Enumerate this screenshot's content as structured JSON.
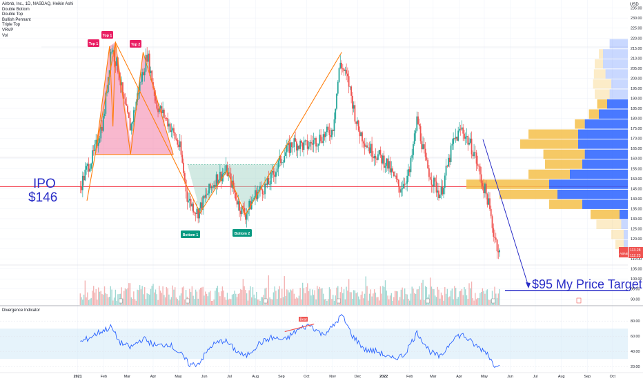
{
  "header": {
    "symbol_line": "Airbnb, Inc., 1D, NASDAQ, Heikin Ashi",
    "indicators": [
      "Double Bottom",
      "Double Top",
      "Bullish Pennant",
      "Triple Top",
      "VRVP",
      "Vol"
    ]
  },
  "price_axis": {
    "ticks": [
      "235.00",
      "230.00",
      "225.00",
      "220.00",
      "215.00",
      "210.00",
      "205.00",
      "200.00",
      "195.00",
      "190.00",
      "185.00",
      "180.00",
      "175.00",
      "170.00",
      "165.00",
      "160.00",
      "155.00",
      "150.00",
      "145.00",
      "140.00",
      "135.00",
      "130.00",
      "125.00",
      "120.00",
      "115.00",
      "110.00",
      "105.00",
      "100.00",
      "95.00",
      "90.00"
    ],
    "currency": "USD"
  },
  "time_axis": {
    "ticks": [
      "2021",
      "Feb",
      "Mar",
      "Apr",
      "May",
      "Jun",
      "Jul",
      "Aug",
      "Sep",
      "Oct",
      "Nov",
      "Dec",
      "2022",
      "Feb",
      "Mar",
      "Apr",
      "May",
      "Jun",
      "Jul",
      "Aug",
      "Sep",
      "Oct"
    ]
  },
  "annotations": {
    "ipo_line1": "IPO",
    "ipo_line2": "$146",
    "target": "$95 My Price Target",
    "top1a": "Top 1",
    "top1b": "Top 1",
    "top2": "Top 2",
    "bottom1": "Bottom 1",
    "bottom2": "Bottom 2",
    "bear": "Bear"
  },
  "price_labels": {
    "symbol": "ABNB",
    "last": "113.28",
    "ha_close": "112.23"
  },
  "oscillator": {
    "title": "Divergence Indicator",
    "ticks": [
      "80.00",
      "60.00",
      "40.00",
      "20.00"
    ]
  },
  "colors": {
    "bull": "#26a69a",
    "bear": "#ef5350",
    "pattern_line": "#ff7f0e",
    "top_fill": "#f06292",
    "bottom_fill": "#a5d6c7",
    "ipo_line": "#f23645",
    "target_line": "#2a2ec7",
    "vp_up": "#2962ff",
    "vp_down": "#f5c04a",
    "osc_line": "#2962ff",
    "osc_band": "#d6ebf9"
  },
  "chart_data": {
    "type": "candlestick",
    "title": "Airbnb, Inc., 1D, NASDAQ, Heikin Ashi",
    "ylim": [
      87,
      239
    ],
    "ipo_price": 146,
    "target_price": 95,
    "close_path": [
      {
        "x": "2021-01-04",
        "y": 146
      },
      {
        "x": "2021-01-12",
        "y": 155
      },
      {
        "x": "2021-01-20",
        "y": 162
      },
      {
        "x": "2021-02-01",
        "y": 180
      },
      {
        "x": "2021-02-10",
        "y": 216
      },
      {
        "x": "2021-02-18",
        "y": 205
      },
      {
        "x": "2021-02-25",
        "y": 188
      },
      {
        "x": "2021-03-05",
        "y": 175
      },
      {
        "x": "2021-03-15",
        "y": 195
      },
      {
        "x": "2021-03-25",
        "y": 212
      },
      {
        "x": "2021-04-05",
        "y": 187
      },
      {
        "x": "2021-04-19",
        "y": 178
      },
      {
        "x": "2021-05-03",
        "y": 165
      },
      {
        "x": "2021-05-12",
        "y": 140
      },
      {
        "x": "2021-05-24",
        "y": 133
      },
      {
        "x": "2021-06-04",
        "y": 142
      },
      {
        "x": "2021-06-15",
        "y": 150
      },
      {
        "x": "2021-06-28",
        "y": 154
      },
      {
        "x": "2021-07-12",
        "y": 137
      },
      {
        "x": "2021-07-20",
        "y": 132
      },
      {
        "x": "2021-08-02",
        "y": 143
      },
      {
        "x": "2021-08-16",
        "y": 147
      },
      {
        "x": "2021-09-01",
        "y": 160
      },
      {
        "x": "2021-09-15",
        "y": 168
      },
      {
        "x": "2021-10-01",
        "y": 166
      },
      {
        "x": "2021-10-15",
        "y": 170
      },
      {
        "x": "2021-11-01",
        "y": 174
      },
      {
        "x": "2021-11-10",
        "y": 208
      },
      {
        "x": "2021-11-20",
        "y": 198
      },
      {
        "x": "2021-12-01",
        "y": 175
      },
      {
        "x": "2021-12-15",
        "y": 165
      },
      {
        "x": "2022-01-04",
        "y": 158
      },
      {
        "x": "2022-01-20",
        "y": 145
      },
      {
        "x": "2022-02-01",
        "y": 153
      },
      {
        "x": "2022-02-10",
        "y": 180
      },
      {
        "x": "2022-02-20",
        "y": 158
      },
      {
        "x": "2022-03-01",
        "y": 148
      },
      {
        "x": "2022-03-10",
        "y": 142
      },
      {
        "x": "2022-03-25",
        "y": 168
      },
      {
        "x": "2022-04-04",
        "y": 175
      },
      {
        "x": "2022-04-19",
        "y": 163
      },
      {
        "x": "2022-04-27",
        "y": 150
      },
      {
        "x": "2022-05-05",
        "y": 140
      },
      {
        "x": "2022-05-11",
        "y": 125
      },
      {
        "x": "2022-05-19",
        "y": 113
      }
    ],
    "volume_profile": {
      "up": [
        {
          "price": 217,
          "v": 0.22
        },
        {
          "price": 212,
          "v": 0.3
        },
        {
          "price": 207,
          "v": 0.3
        },
        {
          "price": 202,
          "v": 0.27
        },
        {
          "price": 197,
          "v": 0.2
        },
        {
          "price": 192,
          "v": 0.22
        },
        {
          "price": 187,
          "v": 0.25
        },
        {
          "price": 182,
          "v": 0.35
        },
        {
          "price": 177,
          "v": 0.52
        },
        {
          "price": 172,
          "v": 0.6
        },
        {
          "price": 167,
          "v": 0.6
        },
        {
          "price": 162,
          "v": 0.52
        },
        {
          "price": 157,
          "v": 0.55
        },
        {
          "price": 152,
          "v": 0.7
        },
        {
          "price": 147,
          "v": 0.95
        },
        {
          "price": 142,
          "v": 0.85
        },
        {
          "price": 137,
          "v": 0.55
        },
        {
          "price": 132,
          "v": 0.1
        },
        {
          "price": 127,
          "v": 0.08
        },
        {
          "price": 122,
          "v": 0.05
        },
        {
          "price": 117,
          "v": 0.05
        }
      ],
      "down": [
        {
          "price": 217,
          "v": 0.0
        },
        {
          "price": 212,
          "v": 0.05
        },
        {
          "price": 207,
          "v": 0.1
        },
        {
          "price": 202,
          "v": 0.14
        },
        {
          "price": 197,
          "v": 0.22
        },
        {
          "price": 192,
          "v": 0.18
        },
        {
          "price": 187,
          "v": 0.12
        },
        {
          "price": 182,
          "v": 0.12
        },
        {
          "price": 177,
          "v": 0.12
        },
        {
          "price": 172,
          "v": 0.6
        },
        {
          "price": 167,
          "v": 0.7
        },
        {
          "price": 162,
          "v": 0.5
        },
        {
          "price": 157,
          "v": 0.45
        },
        {
          "price": 152,
          "v": 0.5
        },
        {
          "price": 147,
          "v": 1.0
        },
        {
          "price": 142,
          "v": 0.7
        },
        {
          "price": 137,
          "v": 0.4
        },
        {
          "price": 132,
          "v": 0.35
        },
        {
          "price": 127,
          "v": 0.3
        },
        {
          "price": 122,
          "v": 0.15
        },
        {
          "price": 117,
          "v": 0.1
        }
      ]
    },
    "oscillator_path": [
      {
        "x": "2021-01-04",
        "y": 52
      },
      {
        "x": "2021-01-15",
        "y": 58
      },
      {
        "x": "2021-01-28",
        "y": 66
      },
      {
        "x": "2021-02-10",
        "y": 72
      },
      {
        "x": "2021-02-20",
        "y": 52
      },
      {
        "x": "2021-03-05",
        "y": 45
      },
      {
        "x": "2021-03-20",
        "y": 57
      },
      {
        "x": "2021-04-05",
        "y": 47
      },
      {
        "x": "2021-04-20",
        "y": 50
      },
      {
        "x": "2021-05-05",
        "y": 35
      },
      {
        "x": "2021-05-15",
        "y": 22
      },
      {
        "x": "2021-05-25",
        "y": 24
      },
      {
        "x": "2021-06-10",
        "y": 48
      },
      {
        "x": "2021-06-25",
        "y": 55
      },
      {
        "x": "2021-07-10",
        "y": 40
      },
      {
        "x": "2021-07-20",
        "y": 33
      },
      {
        "x": "2021-08-05",
        "y": 50
      },
      {
        "x": "2021-08-20",
        "y": 58
      },
      {
        "x": "2021-09-05",
        "y": 55
      },
      {
        "x": "2021-09-20",
        "y": 68
      },
      {
        "x": "2021-10-05",
        "y": 75
      },
      {
        "x": "2021-10-20",
        "y": 62
      },
      {
        "x": "2021-11-01",
        "y": 72
      },
      {
        "x": "2021-11-12",
        "y": 88
      },
      {
        "x": "2021-11-25",
        "y": 60
      },
      {
        "x": "2021-12-10",
        "y": 42
      },
      {
        "x": "2021-12-25",
        "y": 40
      },
      {
        "x": "2022-01-10",
        "y": 30
      },
      {
        "x": "2022-01-25",
        "y": 35
      },
      {
        "x": "2022-02-10",
        "y": 65
      },
      {
        "x": "2022-02-25",
        "y": 40
      },
      {
        "x": "2022-03-10",
        "y": 32
      },
      {
        "x": "2022-03-25",
        "y": 58
      },
      {
        "x": "2022-04-05",
        "y": 62
      },
      {
        "x": "2022-04-20",
        "y": 48
      },
      {
        "x": "2022-05-05",
        "y": 38
      },
      {
        "x": "2022-05-12",
        "y": 22
      },
      {
        "x": "2022-05-20",
        "y": 25
      }
    ],
    "oscillator_ylim": [
      12,
      92
    ],
    "oscillator_band": [
      30,
      70
    ]
  }
}
